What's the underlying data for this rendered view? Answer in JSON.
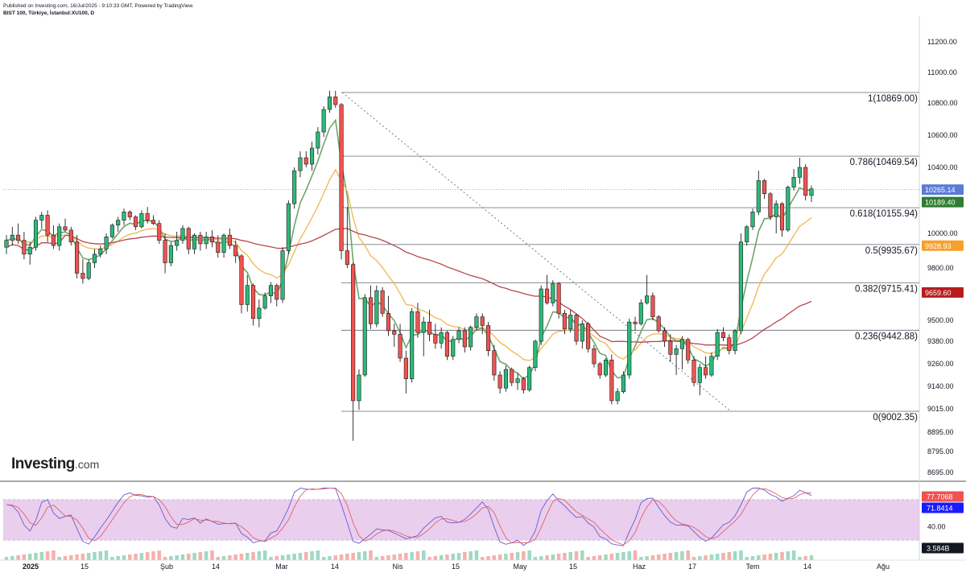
{
  "header": {
    "published": "Published on Investing.com, 16/Jul/2025 - 9:10:33 GMT, Powered by TradingView.",
    "symbol": "BIST 100, Türkiye, İstanbul:XU100, D"
  },
  "logo": {
    "main": "Investing",
    "suffix": ".com"
  },
  "colors": {
    "up": "#26a69a",
    "up_body": "#2db87a",
    "down": "#ef5350",
    "ma_fast": "#6fa56a",
    "ma_mid": "#f2b64f",
    "ma_slow": "#b5484d",
    "fib": "#787b86",
    "stoch_k": "#6a5acd",
    "stoch_d": "#e06070",
    "stoch_band": "#e1bee7"
  },
  "chart_data": [
    {
      "type": "candlestick",
      "title": "BIST 100, Türkiye, İstanbul:XU100, D",
      "y_range": [
        8600,
        11300
      ],
      "y_ticks": [
        {
          "value": 11200,
          "label": "11200.00"
        },
        {
          "value": 11000,
          "label": "11000.00"
        },
        {
          "value": 10800,
          "label": "10800.00"
        },
        {
          "value": 10600,
          "label": "10600.00"
        },
        {
          "value": 10400,
          "label": "10400.00"
        },
        {
          "value": 10000,
          "label": "10000.00"
        },
        {
          "value": 9800,
          "label": "9800.00"
        },
        {
          "value": 9500,
          "label": "9500.00"
        },
        {
          "value": 9380,
          "label": "9380.00"
        },
        {
          "value": 9260,
          "label": "9260.00"
        },
        {
          "value": 9140,
          "label": "9140.00"
        },
        {
          "value": 9015,
          "label": "9015.00"
        },
        {
          "value": 8895,
          "label": "8895.00"
        },
        {
          "value": 8795,
          "label": "8795.00"
        },
        {
          "value": 8695,
          "label": "8695.00"
        }
      ],
      "x_ticks": [
        "2025",
        "15",
        "Şub",
        "14",
        "Mar",
        "14",
        "Nis",
        "15",
        "May",
        "15",
        "Haz",
        "17",
        "Tem",
        "14",
        "Ağu"
      ],
      "fibonacci": [
        {
          "value": 10869.0,
          "label": "1(10869.00)"
        },
        {
          "value": 10469.54,
          "label": "0.786(10469.54)"
        },
        {
          "value": 10155.94,
          "label": "0.618(10155.94)"
        },
        {
          "value": 9935.67,
          "label": "0.5(9935.67)"
        },
        {
          "value": 9715.41,
          "label": "0.382(9715.41)"
        },
        {
          "value": 9442.88,
          "label": "0.236(9442.88)"
        },
        {
          "value": 9002.35,
          "label": "0(9002.35)"
        }
      ],
      "price_badges": [
        {
          "value": 10265.14,
          "label": "10265.14",
          "color": "#5b7bd5"
        },
        {
          "value": 10189.4,
          "label": "10189.40",
          "color": "#2e7d32"
        },
        {
          "value": 9928.93,
          "label": "9928.93",
          "color": "#f7a02c"
        },
        {
          "value": 9659.6,
          "label": "9659.60",
          "color": "#b71c1c"
        }
      ],
      "candles_ohlc": [
        [
          9920,
          9990,
          9880,
          9960
        ],
        [
          9960,
          10040,
          9930,
          9990
        ],
        [
          9990,
          10060,
          9940,
          9960
        ],
        [
          9960,
          10010,
          9850,
          9880
        ],
        [
          9880,
          9950,
          9820,
          9920
        ],
        [
          9920,
          10100,
          9900,
          10080
        ],
        [
          10080,
          10130,
          10030,
          10110
        ],
        [
          10110,
          10140,
          9950,
          9990
        ],
        [
          9990,
          10050,
          9910,
          9930
        ],
        [
          9930,
          10060,
          9900,
          10040
        ],
        [
          10040,
          10090,
          10010,
          10020
        ],
        [
          10020,
          10040,
          9930,
          9950
        ],
        [
          9950,
          9990,
          9740,
          9770
        ],
        [
          9770,
          9850,
          9710,
          9740
        ],
        [
          9740,
          9850,
          9730,
          9830
        ],
        [
          9830,
          9910,
          9800,
          9880
        ],
        [
          9880,
          9930,
          9860,
          9910
        ],
        [
          9910,
          10000,
          9880,
          9980
        ],
        [
          9980,
          10060,
          9970,
          10050
        ],
        [
          10050,
          10100,
          10010,
          10080
        ],
        [
          10080,
          10150,
          10050,
          10130
        ],
        [
          10130,
          10140,
          10080,
          10100
        ],
        [
          10100,
          10110,
          10020,
          10040
        ],
        [
          10040,
          10140,
          10030,
          10120
        ],
        [
          10120,
          10160,
          10060,
          10080
        ],
        [
          10080,
          10110,
          10050,
          10060
        ],
        [
          10060,
          10080,
          9940,
          9960
        ],
        [
          9960,
          10000,
          9770,
          9830
        ],
        [
          9830,
          9950,
          9810,
          9930
        ],
        [
          9930,
          10010,
          9900,
          9960
        ],
        [
          9960,
          10050,
          9940,
          10030
        ],
        [
          10030,
          10040,
          9880,
          9910
        ],
        [
          9910,
          10000,
          9880,
          9990
        ],
        [
          9990,
          10010,
          9900,
          9940
        ],
        [
          9940,
          10010,
          9910,
          9980
        ],
        [
          9980,
          10020,
          9920,
          9950
        ],
        [
          9950,
          9990,
          9860,
          9890
        ],
        [
          9890,
          10000,
          9860,
          9990
        ],
        [
          9990,
          10030,
          9910,
          9930
        ],
        [
          9930,
          9960,
          9830,
          9870
        ],
        [
          9870,
          9880,
          9540,
          9590
        ],
        [
          9590,
          9760,
          9550,
          9700
        ],
        [
          9700,
          9710,
          9470,
          9510
        ],
        [
          9510,
          9620,
          9460,
          9570
        ],
        [
          9570,
          9660,
          9560,
          9640
        ],
        [
          9640,
          9720,
          9600,
          9700
        ],
        [
          9700,
          9710,
          9580,
          9620
        ],
        [
          9620,
          9920,
          9600,
          9900
        ],
        [
          9900,
          10200,
          9880,
          10180
        ],
        [
          10180,
          10400,
          10150,
          10380
        ],
        [
          10380,
          10500,
          10340,
          10460
        ],
        [
          10460,
          10500,
          10400,
          10420
        ],
        [
          10420,
          10560,
          10380,
          10520
        ],
        [
          10520,
          10650,
          10480,
          10620
        ],
        [
          10620,
          10780,
          10590,
          10760
        ],
        [
          10760,
          10880,
          10740,
          10840
        ],
        [
          10840,
          10880,
          10770,
          10790
        ],
        [
          10790,
          10800,
          9850,
          9900
        ],
        [
          9900,
          10160,
          9800,
          9820
        ],
        [
          9820,
          9830,
          8850,
          9060
        ],
        [
          9060,
          9230,
          9010,
          9200
        ],
        [
          9200,
          9650,
          9190,
          9630
        ],
        [
          9630,
          9700,
          9450,
          9480
        ],
        [
          9480,
          9700,
          9460,
          9670
        ],
        [
          9670,
          9690,
          9520,
          9540
        ],
        [
          9540,
          9640,
          9410,
          9440
        ],
        [
          9440,
          9480,
          9350,
          9420
        ],
        [
          9420,
          9480,
          9270,
          9290
        ],
        [
          9290,
          9330,
          9100,
          9180
        ],
        [
          9180,
          9570,
          9160,
          9550
        ],
        [
          9550,
          9600,
          9400,
          9430
        ],
        [
          9430,
          9520,
          9300,
          9490
        ],
        [
          9490,
          9560,
          9380,
          9420
        ],
        [
          9420,
          9480,
          9340,
          9370
        ],
        [
          9370,
          9460,
          9340,
          9430
        ],
        [
          9430,
          9440,
          9280,
          9300
        ],
        [
          9300,
          9410,
          9280,
          9390
        ],
        [
          9390,
          9460,
          9370,
          9440
        ],
        [
          9440,
          9460,
          9320,
          9350
        ],
        [
          9350,
          9470,
          9330,
          9460
        ],
        [
          9460,
          9540,
          9440,
          9520
        ],
        [
          9520,
          9540,
          9420,
          9470
        ],
        [
          9470,
          9490,
          9300,
          9330
        ],
        [
          9330,
          9360,
          9170,
          9200
        ],
        [
          9200,
          9220,
          9100,
          9130
        ],
        [
          9130,
          9250,
          9110,
          9230
        ],
        [
          9230,
          9240,
          9140,
          9160
        ],
        [
          9160,
          9210,
          9120,
          9180
        ],
        [
          9180,
          9190,
          9100,
          9120
        ],
        [
          9120,
          9250,
          9110,
          9240
        ],
        [
          9240,
          9390,
          9220,
          9380
        ],
        [
          9380,
          9700,
          9360,
          9680
        ],
        [
          9680,
          9760,
          9590,
          9600
        ],
        [
          9600,
          9730,
          9580,
          9710
        ],
        [
          9710,
          9720,
          9510,
          9540
        ],
        [
          9540,
          9560,
          9420,
          9450
        ],
        [
          9450,
          9560,
          9430,
          9530
        ],
        [
          9530,
          9540,
          9360,
          9380
        ],
        [
          9380,
          9500,
          9340,
          9480
        ],
        [
          9480,
          9490,
          9320,
          9340
        ],
        [
          9340,
          9360,
          9240,
          9260
        ],
        [
          9260,
          9270,
          9180,
          9200
        ],
        [
          9200,
          9290,
          9190,
          9280
        ],
        [
          9280,
          9310,
          9040,
          9060
        ],
        [
          9060,
          9130,
          9040,
          9110
        ],
        [
          9110,
          9220,
          9100,
          9200
        ],
        [
          9200,
          9510,
          9180,
          9490
        ],
        [
          9490,
          9520,
          9440,
          9480
        ],
        [
          9480,
          9620,
          9470,
          9600
        ],
        [
          9600,
          9760,
          9590,
          9640
        ],
        [
          9640,
          9660,
          9500,
          9520
        ],
        [
          9520,
          9530,
          9430,
          9440
        ],
        [
          9440,
          9460,
          9350,
          9380
        ],
        [
          9380,
          9420,
          9270,
          9310
        ],
        [
          9310,
          9360,
          9200,
          9340
        ],
        [
          9340,
          9410,
          9230,
          9390
        ],
        [
          9390,
          9400,
          9260,
          9280
        ],
        [
          9280,
          9300,
          9140,
          9160
        ],
        [
          9160,
          9260,
          9090,
          9240
        ],
        [
          9240,
          9300,
          9180,
          9200
        ],
        [
          9200,
          9320,
          9190,
          9300
        ],
        [
          9300,
          9450,
          9280,
          9430
        ],
        [
          9430,
          9460,
          9380,
          9400
        ],
        [
          9400,
          9420,
          9310,
          9330
        ],
        [
          9330,
          9450,
          9310,
          9440
        ],
        [
          9440,
          10000,
          9420,
          9950
        ],
        [
          9950,
          10050,
          9930,
          10040
        ],
        [
          10040,
          10150,
          10020,
          10130
        ],
        [
          10130,
          10380,
          10110,
          10320
        ],
        [
          10320,
          10330,
          10210,
          10240
        ],
        [
          10240,
          10250,
          10080,
          10100
        ],
        [
          10100,
          10200,
          10000,
          10180
        ],
        [
          10180,
          10190,
          9980,
          10020
        ],
        [
          10020,
          10290,
          10010,
          10280
        ],
        [
          10280,
          10390,
          10260,
          10340
        ],
        [
          10340,
          10460,
          10300,
          10400
        ],
        [
          10400,
          10420,
          10200,
          10230
        ],
        [
          10230,
          10290,
          10190,
          10270
        ]
      ],
      "series": [
        {
          "name": "MA fast",
          "color": "#6fa56a"
        },
        {
          "name": "MA mid",
          "color": "#f2b64f"
        },
        {
          "name": "MA slow",
          "color": "#b5484d"
        }
      ]
    },
    {
      "type": "line",
      "y_ticks": [
        {
          "value": 40,
          "label": "40.00"
        }
      ],
      "badges": [
        {
          "label": "77.7068",
          "color": "#ef5350"
        },
        {
          "label": "71.8414",
          "color": "#1a1aff"
        },
        {
          "label": "3.584B",
          "color": "#131722"
        }
      ],
      "band": [
        20,
        80
      ]
    }
  ]
}
